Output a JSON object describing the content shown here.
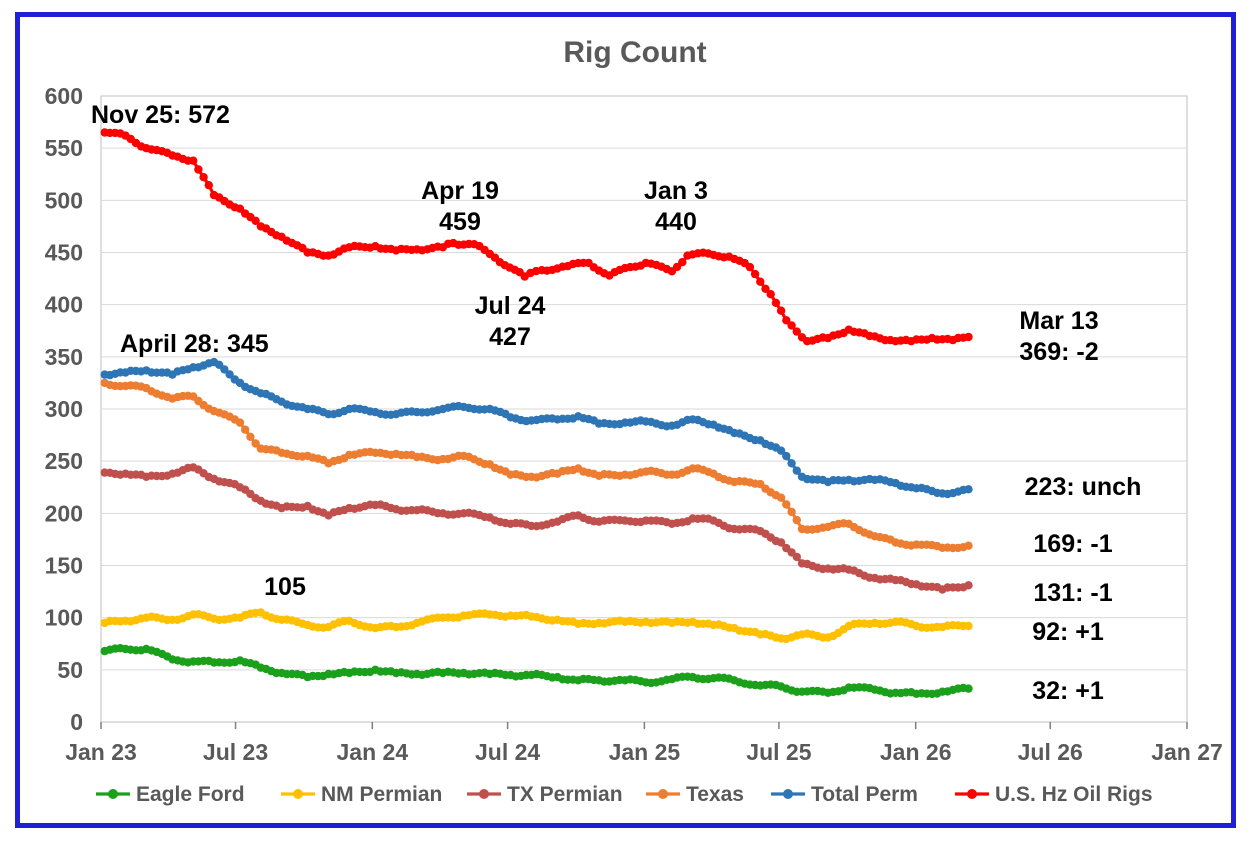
{
  "chart_data": {
    "type": "line",
    "title": "Rig Count",
    "xlabel": "",
    "ylabel": "",
    "x_ticks": [
      "Jan 23",
      "Jul 23",
      "Jan 24",
      "Jul 24",
      "Jan 25",
      "Jul 25",
      "Jan 26",
      "Jul 26",
      "Jan 27"
    ],
    "ylim": [
      0,
      600
    ],
    "y_ticks": [
      "0",
      "50",
      "100",
      "150",
      "200",
      "250",
      "300",
      "350",
      "400",
      "450",
      "500",
      "550",
      "600"
    ],
    "grid": "horizontal",
    "legend_position": "bottom",
    "series": [
      {
        "name": "Eagle Ford",
        "color": "#1aa01a",
        "points": [
          [
            "2023-01-06",
            68
          ],
          [
            "2023-02-03",
            70
          ],
          [
            "2023-03-03",
            70
          ],
          [
            "2023-04-07",
            60
          ],
          [
            "2023-05-05",
            58
          ],
          [
            "2023-06-02",
            57
          ],
          [
            "2023-07-07",
            59
          ],
          [
            "2023-08-04",
            52
          ],
          [
            "2023-09-01",
            47
          ],
          [
            "2023-10-06",
            43
          ],
          [
            "2023-11-03",
            46
          ],
          [
            "2023-12-01",
            47
          ],
          [
            "2024-01-05",
            50
          ],
          [
            "2024-02-02",
            47
          ],
          [
            "2024-03-01",
            46
          ],
          [
            "2024-04-05",
            47
          ],
          [
            "2024-05-03",
            47
          ],
          [
            "2024-06-07",
            46
          ],
          [
            "2024-07-05",
            45
          ],
          [
            "2024-08-02",
            45
          ],
          [
            "2024-09-06",
            43
          ],
          [
            "2024-10-04",
            40
          ],
          [
            "2024-11-01",
            40
          ],
          [
            "2024-12-06",
            40
          ],
          [
            "2025-01-03",
            38
          ],
          [
            "2025-02-07",
            41
          ],
          [
            "2025-03-07",
            43
          ],
          [
            "2025-04-04",
            42
          ],
          [
            "2025-05-02",
            40
          ],
          [
            "2025-06-06",
            35
          ],
          [
            "2025-07-04",
            34
          ],
          [
            "2025-08-01",
            29
          ],
          [
            "2025-09-05",
            28
          ],
          [
            "2025-10-03",
            33
          ],
          [
            "2025-11-07",
            31
          ],
          [
            "2025-12-05",
            28
          ],
          [
            "2026-01-02",
            27
          ],
          [
            "2026-02-06",
            29
          ],
          [
            "2026-03-13",
            32
          ]
        ]
      },
      {
        "name": "NM Permian",
        "color": "#ffc000",
        "points": [
          [
            "2023-01-06",
            95
          ],
          [
            "2023-02-03",
            97
          ],
          [
            "2023-03-03",
            100
          ],
          [
            "2023-04-07",
            98
          ],
          [
            "2023-05-05",
            103
          ],
          [
            "2023-06-02",
            99
          ],
          [
            "2023-07-07",
            100
          ],
          [
            "2023-08-04",
            105
          ],
          [
            "2023-09-01",
            98
          ],
          [
            "2023-10-06",
            93
          ],
          [
            "2023-11-03",
            91
          ],
          [
            "2023-12-01",
            97
          ],
          [
            "2024-01-05",
            90
          ],
          [
            "2024-02-02",
            91
          ],
          [
            "2024-03-01",
            95
          ],
          [
            "2024-04-05",
            100
          ],
          [
            "2024-05-03",
            102
          ],
          [
            "2024-06-07",
            103
          ],
          [
            "2024-07-05",
            102
          ],
          [
            "2024-08-02",
            101
          ],
          [
            "2024-09-06",
            98
          ],
          [
            "2024-10-04",
            94
          ],
          [
            "2024-11-01",
            95
          ],
          [
            "2024-12-06",
            96
          ],
          [
            "2025-01-03",
            96
          ],
          [
            "2025-02-07",
            95
          ],
          [
            "2025-03-07",
            96
          ],
          [
            "2025-04-04",
            93
          ],
          [
            "2025-05-02",
            90
          ],
          [
            "2025-06-06",
            84
          ],
          [
            "2025-07-04",
            80
          ],
          [
            "2025-08-01",
            84
          ],
          [
            "2025-09-05",
            81
          ],
          [
            "2025-10-03",
            92
          ],
          [
            "2025-11-07",
            95
          ],
          [
            "2025-12-05",
            96
          ],
          [
            "2026-01-02",
            92
          ],
          [
            "2026-02-06",
            91
          ],
          [
            "2026-03-13",
            92
          ]
        ]
      },
      {
        "name": "TX Permian",
        "color": "#c0504d",
        "points": [
          [
            "2023-01-06",
            239
          ],
          [
            "2023-02-03",
            238
          ],
          [
            "2023-03-03",
            235
          ],
          [
            "2023-04-07",
            238
          ],
          [
            "2023-05-05",
            244
          ],
          [
            "2023-06-02",
            233
          ],
          [
            "2023-07-07",
            225
          ],
          [
            "2023-08-04",
            212
          ],
          [
            "2023-09-01",
            205
          ],
          [
            "2023-10-06",
            207
          ],
          [
            "2023-11-03",
            198
          ],
          [
            "2023-12-01",
            205
          ],
          [
            "2024-01-05",
            208
          ],
          [
            "2024-02-02",
            204
          ],
          [
            "2024-03-01",
            203
          ],
          [
            "2024-04-05",
            200
          ],
          [
            "2024-05-03",
            200
          ],
          [
            "2024-06-07",
            196
          ],
          [
            "2024-07-05",
            190
          ],
          [
            "2024-08-02",
            188
          ],
          [
            "2024-09-06",
            192
          ],
          [
            "2024-10-04",
            198
          ],
          [
            "2024-11-01",
            192
          ],
          [
            "2024-12-06",
            193
          ],
          [
            "2025-01-03",
            193
          ],
          [
            "2025-02-07",
            190
          ],
          [
            "2025-03-07",
            195
          ],
          [
            "2025-04-04",
            193
          ],
          [
            "2025-05-02",
            185
          ],
          [
            "2025-06-06",
            183
          ],
          [
            "2025-07-04",
            172
          ],
          [
            "2025-08-01",
            152
          ],
          [
            "2025-09-05",
            147
          ],
          [
            "2025-10-03",
            146
          ],
          [
            "2025-11-07",
            138
          ],
          [
            "2025-12-05",
            136
          ],
          [
            "2026-01-02",
            132
          ],
          [
            "2026-02-06",
            127
          ],
          [
            "2026-03-13",
            131
          ]
        ]
      },
      {
        "name": "Texas",
        "color": "#ed7d31",
        "points": [
          [
            "2023-01-06",
            325
          ],
          [
            "2023-02-03",
            322
          ],
          [
            "2023-03-03",
            320
          ],
          [
            "2023-04-07",
            310
          ],
          [
            "2023-05-05",
            312
          ],
          [
            "2023-06-02",
            298
          ],
          [
            "2023-07-07",
            287
          ],
          [
            "2023-08-04",
            262
          ],
          [
            "2023-09-01",
            258
          ],
          [
            "2023-10-06",
            255
          ],
          [
            "2023-11-03",
            248
          ],
          [
            "2023-12-01",
            256
          ],
          [
            "2024-01-05",
            258
          ],
          [
            "2024-02-02",
            257
          ],
          [
            "2024-03-01",
            254
          ],
          [
            "2024-04-05",
            252
          ],
          [
            "2024-05-03",
            255
          ],
          [
            "2024-06-07",
            247
          ],
          [
            "2024-07-05",
            237
          ],
          [
            "2024-08-02",
            235
          ],
          [
            "2024-09-06",
            238
          ],
          [
            "2024-10-04",
            243
          ],
          [
            "2024-11-01",
            236
          ],
          [
            "2024-12-06",
            237
          ],
          [
            "2025-01-03",
            240
          ],
          [
            "2025-02-07",
            237
          ],
          [
            "2025-03-07",
            243
          ],
          [
            "2025-04-04",
            238
          ],
          [
            "2025-05-02",
            230
          ],
          [
            "2025-06-06",
            228
          ],
          [
            "2025-07-04",
            215
          ],
          [
            "2025-08-01",
            185
          ],
          [
            "2025-09-05",
            187
          ],
          [
            "2025-10-03",
            190
          ],
          [
            "2025-11-07",
            178
          ],
          [
            "2025-12-05",
            172
          ],
          [
            "2026-01-02",
            170
          ],
          [
            "2026-02-06",
            167
          ],
          [
            "2026-03-13",
            169
          ]
        ]
      },
      {
        "name": "Total Perm",
        "color": "#2e75b6",
        "points": [
          [
            "2023-01-06",
            333
          ],
          [
            "2023-02-03",
            335
          ],
          [
            "2023-03-03",
            337
          ],
          [
            "2023-04-07",
            333
          ],
          [
            "2023-05-05",
            340
          ],
          [
            "2023-06-02",
            345
          ],
          [
            "2023-07-07",
            325
          ],
          [
            "2023-08-04",
            315
          ],
          [
            "2023-09-01",
            307
          ],
          [
            "2023-10-06",
            300
          ],
          [
            "2023-11-03",
            295
          ],
          [
            "2023-12-01",
            300
          ],
          [
            "2024-01-05",
            297
          ],
          [
            "2024-02-02",
            295
          ],
          [
            "2024-03-01",
            297
          ],
          [
            "2024-04-05",
            300
          ],
          [
            "2024-05-03",
            302
          ],
          [
            "2024-06-07",
            300
          ],
          [
            "2024-07-05",
            292
          ],
          [
            "2024-08-02",
            289
          ],
          [
            "2024-09-06",
            290
          ],
          [
            "2024-10-04",
            293
          ],
          [
            "2024-11-01",
            286
          ],
          [
            "2024-12-06",
            287
          ],
          [
            "2025-01-03",
            288
          ],
          [
            "2025-02-07",
            284
          ],
          [
            "2025-03-07",
            290
          ],
          [
            "2025-04-04",
            285
          ],
          [
            "2025-05-02",
            277
          ],
          [
            "2025-06-06",
            270
          ],
          [
            "2025-07-04",
            260
          ],
          [
            "2025-08-01",
            235
          ],
          [
            "2025-09-05",
            230
          ],
          [
            "2025-10-03",
            232
          ],
          [
            "2025-11-07",
            232
          ],
          [
            "2025-12-05",
            229
          ],
          [
            "2026-01-02",
            224
          ],
          [
            "2026-02-06",
            219
          ],
          [
            "2026-03-13",
            223
          ]
        ]
      },
      {
        "name": "U.S. Hz Oil Rigs",
        "color": "#ff0000",
        "points": [
          [
            "2023-01-06",
            565
          ],
          [
            "2023-02-03",
            562
          ],
          [
            "2023-03-03",
            550
          ],
          [
            "2023-04-07",
            543
          ],
          [
            "2023-05-05",
            538
          ],
          [
            "2023-06-02",
            505
          ],
          [
            "2023-07-07",
            492
          ],
          [
            "2023-08-04",
            475
          ],
          [
            "2023-09-01",
            465
          ],
          [
            "2023-10-06",
            450
          ],
          [
            "2023-11-03",
            447
          ],
          [
            "2023-12-01",
            455
          ],
          [
            "2024-01-05",
            456
          ],
          [
            "2024-02-02",
            452
          ],
          [
            "2024-03-01",
            453
          ],
          [
            "2024-04-05",
            455
          ],
          [
            "2024-04-19",
            459
          ],
          [
            "2024-05-17",
            458
          ],
          [
            "2024-06-14",
            445
          ],
          [
            "2024-07-24",
            427
          ],
          [
            "2024-08-16",
            433
          ],
          [
            "2024-09-20",
            437
          ],
          [
            "2024-10-18",
            440
          ],
          [
            "2024-11-15",
            428
          ],
          [
            "2024-12-13",
            436
          ],
          [
            "2025-01-03",
            440
          ],
          [
            "2025-02-07",
            432
          ],
          [
            "2025-02-28",
            447
          ],
          [
            "2025-03-28",
            449
          ],
          [
            "2025-04-25",
            446
          ],
          [
            "2025-05-23",
            436
          ],
          [
            "2025-06-20",
            410
          ],
          [
            "2025-07-11",
            385
          ],
          [
            "2025-08-08",
            365
          ],
          [
            "2025-09-05",
            368
          ],
          [
            "2025-10-03",
            376
          ],
          [
            "2025-10-31",
            370
          ],
          [
            "2025-11-28",
            366
          ],
          [
            "2025-12-26",
            365
          ],
          [
            "2026-01-23",
            368
          ],
          [
            "2026-02-20",
            366
          ],
          [
            "2026-03-13",
            369
          ]
        ]
      }
    ],
    "annotations": [
      {
        "text": "Nov 25: 572"
      },
      {
        "text": "April 28: 345"
      },
      {
        "text": "105"
      },
      {
        "text": "Apr 19"
      },
      {
        "text": "459"
      },
      {
        "text": "Jul 24"
      },
      {
        "text": "427"
      },
      {
        "text": "Jan 3"
      },
      {
        "text": "440"
      },
      {
        "text": "Mar 13"
      },
      {
        "text": "369: -2"
      },
      {
        "text": "223: unch"
      },
      {
        "text": "169: -1"
      },
      {
        "text": "131: -1"
      },
      {
        "text": "92: +1"
      },
      {
        "text": "32: +1"
      }
    ]
  }
}
